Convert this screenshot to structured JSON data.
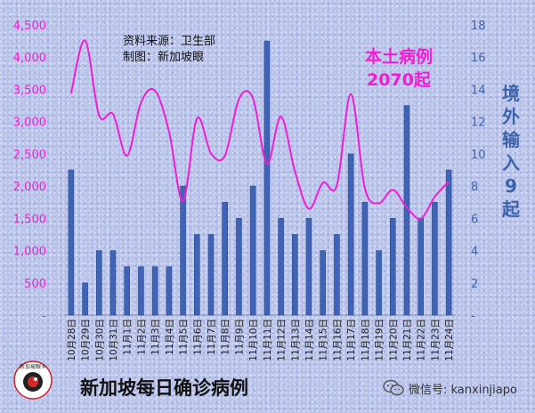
{
  "chart_data": {
    "type": "bar+line",
    "categories": [
      "10月28日",
      "10月29日",
      "10月30日",
      "10月31日",
      "11月1日",
      "11月2日",
      "11月3日",
      "11月4日",
      "11月5日",
      "11月6日",
      "11月7日",
      "11月8日",
      "11月9日",
      "11月10日",
      "11月11日",
      "11月12日",
      "11月13日",
      "11月14日",
      "11月15日",
      "11月16日",
      "11月17日",
      "11月18日",
      "11月19日",
      "11月20日",
      "11月21日",
      "11月22日",
      "11月23日",
      "11月24日"
    ],
    "bars": {
      "axis": "right",
      "values": [
        9,
        2,
        4,
        4,
        3,
        3,
        3,
        3,
        8,
        5,
        5,
        7,
        6,
        8,
        17,
        6,
        5,
        6,
        4,
        5,
        10,
        7,
        4,
        6,
        13,
        6,
        7,
        9
      ],
      "color": "#3f63b5"
    },
    "line": {
      "axis": "left",
      "values": [
        3439,
        4260,
        3099,
        3115,
        2472,
        3296,
        3481,
        2850,
        1767,
        3048,
        2509,
        2474,
        3350,
        3365,
        2348,
        3079,
        2232,
        1650,
        2052,
        2010,
        3426,
        1970,
        1734,
        1943,
        1669,
        1496,
        1835,
        2070
      ],
      "color": "#ee1fd3"
    },
    "left_axis": {
      "range": [
        0,
        4500
      ],
      "ticks": [
        "-",
        "500",
        "1,000",
        "1,500",
        "2,000",
        "2,500",
        "3,000",
        "3,500",
        "4,000",
        "4,500"
      ]
    },
    "right_axis": {
      "range": [
        0,
        18
      ],
      "ticks": [
        "-",
        "2",
        "4",
        "6",
        "8",
        "10",
        "12",
        "14",
        "16",
        "18"
      ]
    },
    "source_line1": "资料来源：卫生部",
    "source_line2": "制图：新加坡眼",
    "local_label_1": "本土病例",
    "local_label_2": "2070起",
    "imported_label": [
      "境",
      "外",
      "输",
      "入",
      "9",
      "起"
    ]
  },
  "footer_title": "新加坡每日确诊病例",
  "logo_text": "新加坡眼®",
  "wechat_label": "微信号: kanxinjiapo",
  "colors": {
    "pink": "#ee1fd3",
    "blue": "#3d63ad",
    "bar": "#3f63b5"
  }
}
